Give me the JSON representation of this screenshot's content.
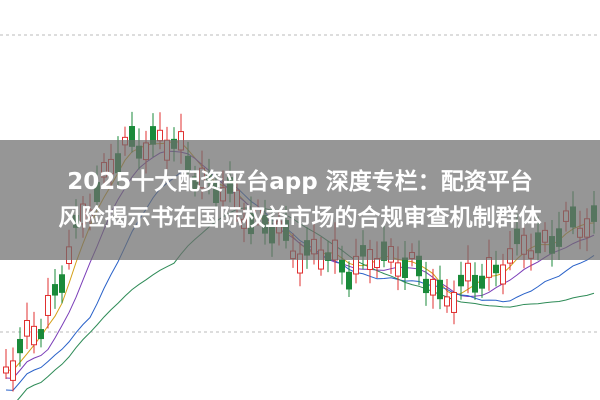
{
  "banner": {
    "lines": [
      "2025十大配资平台app 深度专栏：配资平台",
      "风险揭示书在国际权益市场的合规审查机制群体"
    ]
  }
}
